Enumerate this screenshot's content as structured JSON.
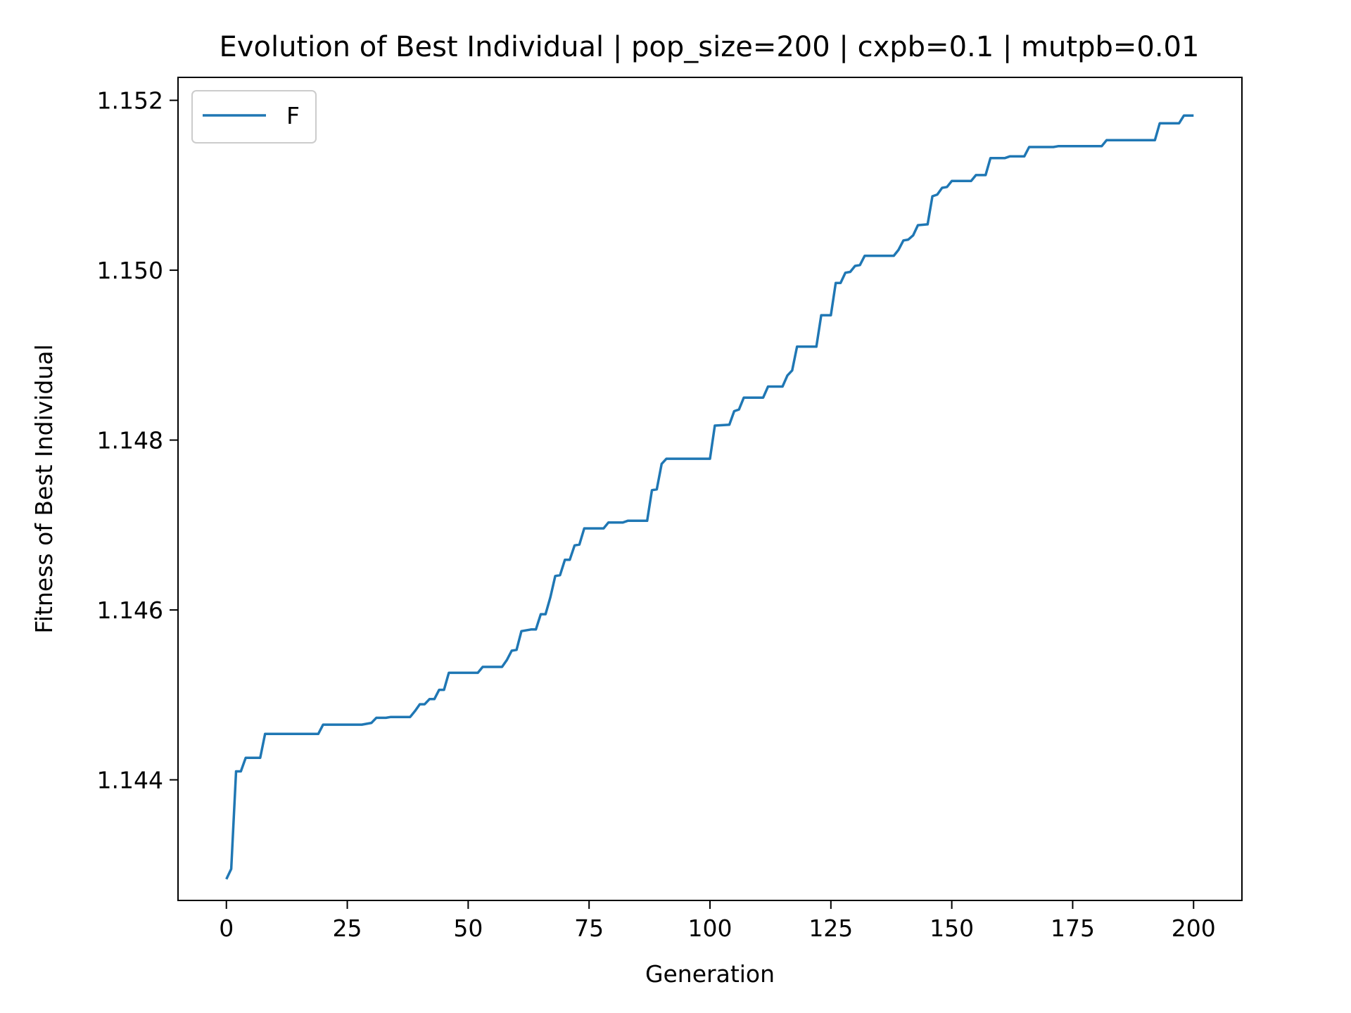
{
  "chart_data": {
    "type": "line",
    "title": "Evolution of Best Individual | pop_size=200 | cxpb=0.1 | mutpb=0.01",
    "xlabel": "Generation",
    "ylabel": "Fitness of Best Individual",
    "xlim": [
      -10,
      210
    ],
    "ylim": [
      1.14258,
      1.15227
    ],
    "x_ticks": [
      0,
      25,
      50,
      75,
      100,
      125,
      150,
      175,
      200
    ],
    "x_tick_labels": [
      "0",
      "25",
      "50",
      "75",
      "100",
      "125",
      "150",
      "175",
      "200"
    ],
    "y_ticks": [
      1.144,
      1.146,
      1.148,
      1.15,
      1.152
    ],
    "y_tick_labels": [
      "1.144",
      "1.146",
      "1.148",
      "1.150",
      "1.152"
    ],
    "grid": false,
    "legend_position": "upper-left",
    "series": [
      {
        "name": "F",
        "color": "#1f77b4",
        "points": [
          [
            0,
            1.14283
          ],
          [
            1,
            1.14295
          ],
          [
            2,
            1.1441
          ],
          [
            3,
            1.1441
          ],
          [
            4,
            1.14426
          ],
          [
            7,
            1.14426
          ],
          [
            8,
            1.14454
          ],
          [
            19,
            1.14454
          ],
          [
            20,
            1.14465
          ],
          [
            28,
            1.14465
          ],
          [
            30,
            1.14467
          ],
          [
            31,
            1.14473
          ],
          [
            33,
            1.14473
          ],
          [
            34,
            1.14474
          ],
          [
            38,
            1.14474
          ],
          [
            39,
            1.14481
          ],
          [
            40,
            1.14489
          ],
          [
            41,
            1.14489
          ],
          [
            42,
            1.14495
          ],
          [
            43,
            1.14495
          ],
          [
            44,
            1.14506
          ],
          [
            45,
            1.14506
          ],
          [
            46,
            1.14526
          ],
          [
            52,
            1.14526
          ],
          [
            53,
            1.14533
          ],
          [
            57,
            1.14533
          ],
          [
            58,
            1.14541
          ],
          [
            59,
            1.14552
          ],
          [
            60,
            1.14553
          ],
          [
            61,
            1.14575
          ],
          [
            63,
            1.14577
          ],
          [
            64,
            1.14577
          ],
          [
            65,
            1.14595
          ],
          [
            66,
            1.14595
          ],
          [
            67,
            1.14615
          ],
          [
            68,
            1.1464
          ],
          [
            69,
            1.14641
          ],
          [
            70,
            1.14659
          ],
          [
            71,
            1.14659
          ],
          [
            72,
            1.14676
          ],
          [
            73,
            1.14677
          ],
          [
            74,
            1.14696
          ],
          [
            78,
            1.14696
          ],
          [
            79,
            1.14703
          ],
          [
            82,
            1.14703
          ],
          [
            83,
            1.14705
          ],
          [
            87,
            1.14705
          ],
          [
            88,
            1.14741
          ],
          [
            89,
            1.14742
          ],
          [
            90,
            1.14772
          ],
          [
            91,
            1.14778
          ],
          [
            100,
            1.14778
          ],
          [
            101,
            1.14817
          ],
          [
            104,
            1.14818
          ],
          [
            105,
            1.14834
          ],
          [
            106,
            1.14836
          ],
          [
            107,
            1.1485
          ],
          [
            111,
            1.1485
          ],
          [
            112,
            1.14863
          ],
          [
            115,
            1.14863
          ],
          [
            116,
            1.14876
          ],
          [
            117,
            1.14882
          ],
          [
            118,
            1.1491
          ],
          [
            122,
            1.1491
          ],
          [
            123,
            1.14947
          ],
          [
            125,
            1.14947
          ],
          [
            126,
            1.14985
          ],
          [
            127,
            1.14985
          ],
          [
            128,
            1.14997
          ],
          [
            129,
            1.14998
          ],
          [
            130,
            1.15005
          ],
          [
            131,
            1.15006
          ],
          [
            132,
            1.15017
          ],
          [
            138,
            1.15017
          ],
          [
            139,
            1.15024
          ],
          [
            140,
            1.15035
          ],
          [
            141,
            1.15036
          ],
          [
            142,
            1.15041
          ],
          [
            143,
            1.15053
          ],
          [
            145,
            1.15054
          ],
          [
            146,
            1.15087
          ],
          [
            147,
            1.15089
          ],
          [
            148,
            1.15097
          ],
          [
            149,
            1.15098
          ],
          [
            150,
            1.15105
          ],
          [
            154,
            1.15105
          ],
          [
            155,
            1.15112
          ],
          [
            157,
            1.15112
          ],
          [
            158,
            1.15132
          ],
          [
            161,
            1.15132
          ],
          [
            162,
            1.15134
          ],
          [
            165,
            1.15134
          ],
          [
            166,
            1.15145
          ],
          [
            171,
            1.15145
          ],
          [
            172,
            1.15146
          ],
          [
            181,
            1.15146
          ],
          [
            182,
            1.15153
          ],
          [
            192,
            1.15153
          ],
          [
            193,
            1.15173
          ],
          [
            197,
            1.15173
          ],
          [
            198,
            1.15182
          ],
          [
            200,
            1.15182
          ]
        ]
      }
    ]
  }
}
